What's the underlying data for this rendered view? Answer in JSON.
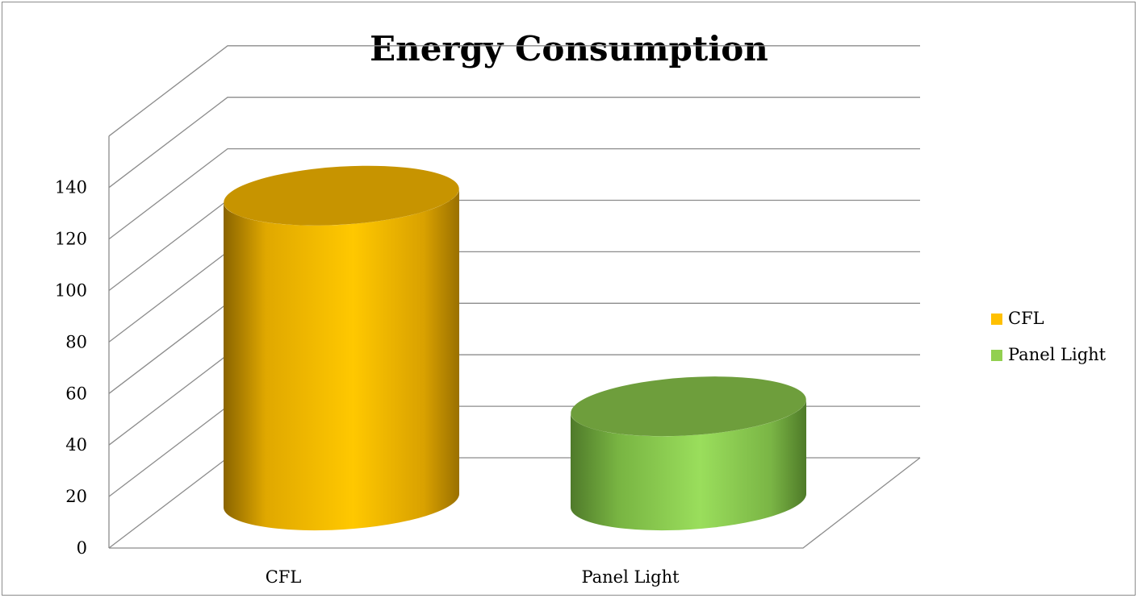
{
  "chart_data": {
    "type": "bar",
    "title": "Energy Consumption",
    "categories": [
      "CFL",
      "Panel Light"
    ],
    "series": [
      {
        "name": "CFL",
        "values": [
          130,
          null
        ],
        "color": "#FFC000"
      },
      {
        "name": "Panel Light",
        "values": [
          null,
          42
        ],
        "color": "#92D050"
      }
    ],
    "ylim": [
      0,
      140
    ],
    "yticks": [
      0,
      20,
      40,
      60,
      80,
      100,
      120,
      140
    ],
    "grid": true,
    "legend": "right",
    "style": "3d-cylinder"
  }
}
